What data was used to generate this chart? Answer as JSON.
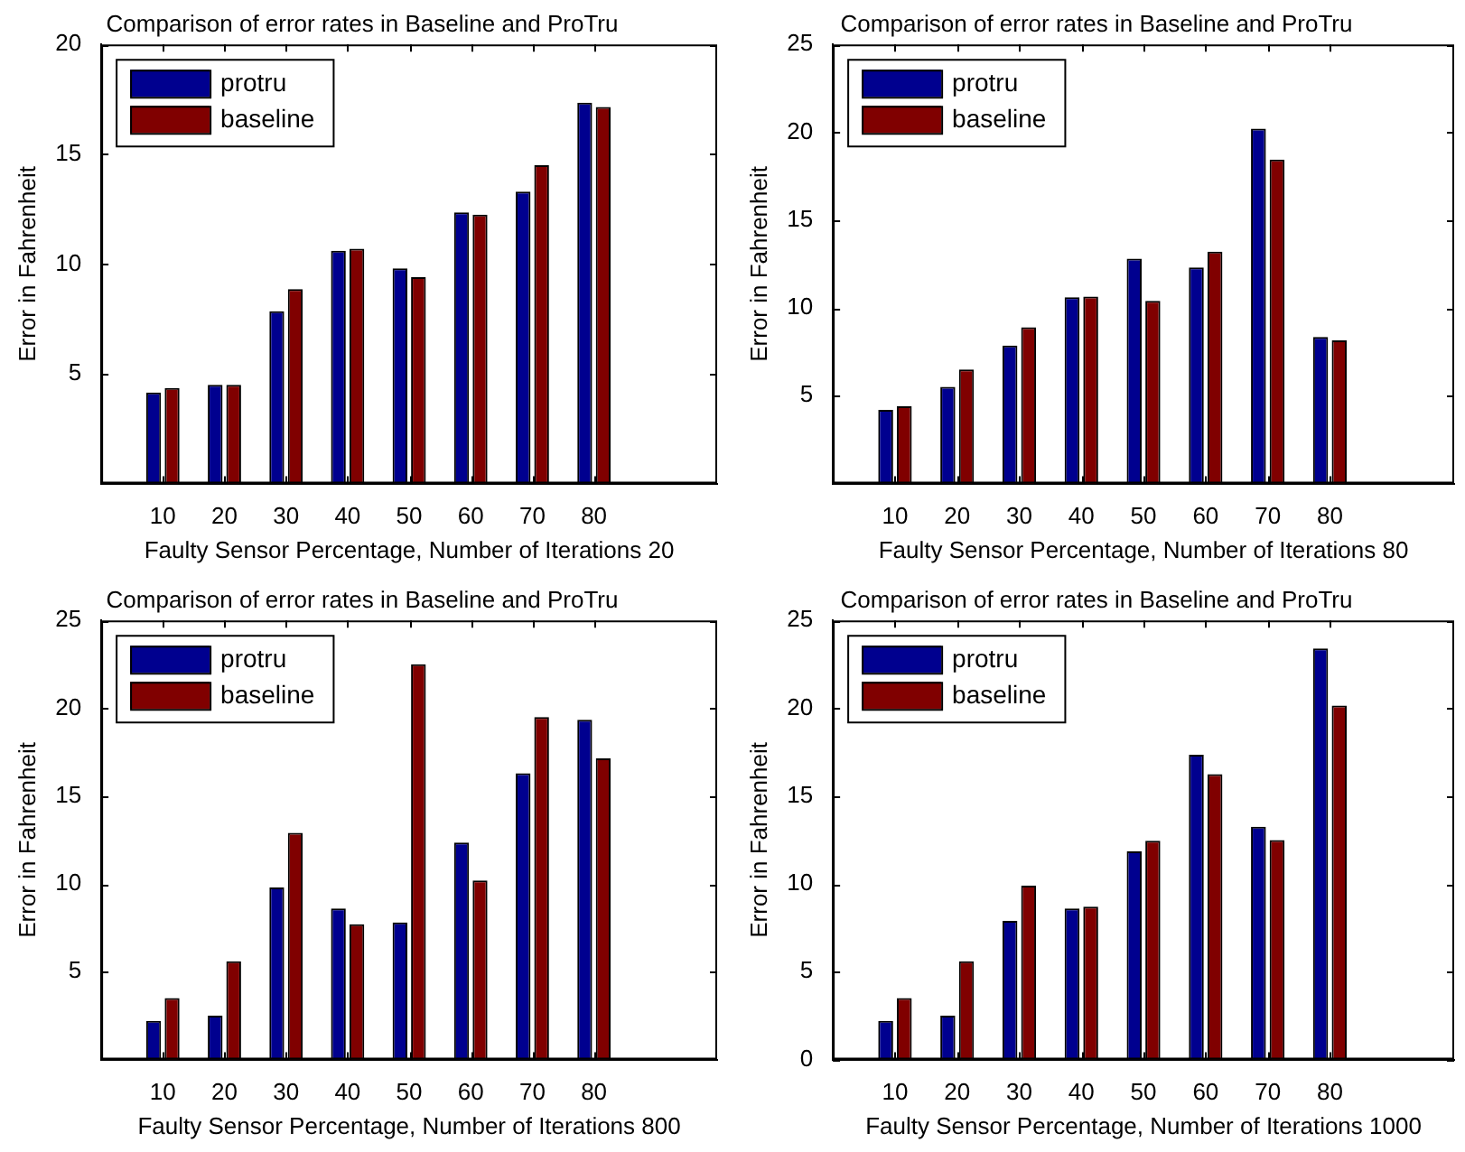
{
  "chart_data": [
    {
      "type": "bar",
      "title": "Comparison of error rates in Baseline and ProTru",
      "xlabel": "Faulty Sensor Percentage, Number of Iterations 20",
      "ylabel": "Error in Fahrenheit",
      "x": [
        10,
        20,
        30,
        40,
        50,
        60,
        70,
        80
      ],
      "xlim": [
        0,
        100
      ],
      "xticks": [
        10,
        20,
        30,
        40,
        50,
        60,
        70,
        80
      ],
      "ylim": [
        0,
        20
      ],
      "yticks": [
        5,
        10,
        15,
        20
      ],
      "legend": "top left",
      "grid": false,
      "series": [
        {
          "name": "protru",
          "color": "#00008f",
          "values": [
            4.15,
            4.5,
            7.85,
            10.6,
            9.8,
            12.35,
            13.3,
            17.35
          ]
        },
        {
          "name": "baseline",
          "color": "#800000",
          "values": [
            4.35,
            4.5,
            8.85,
            10.7,
            9.4,
            12.25,
            14.5,
            17.15
          ]
        }
      ]
    },
    {
      "type": "bar",
      "title": "Comparison of error rates in Baseline and ProTru",
      "xlabel": "Faulty Sensor Percentage, Number of Iterations 80",
      "ylabel": "Error in Fahrenheit",
      "x": [
        10,
        20,
        30,
        40,
        50,
        60,
        70,
        80
      ],
      "xlim": [
        0,
        100
      ],
      "xticks": [
        10,
        20,
        30,
        40,
        50,
        60,
        70,
        80
      ],
      "ylim": [
        0,
        25
      ],
      "yticks": [
        5,
        10,
        15,
        20,
        25
      ],
      "legend": "top left",
      "grid": false,
      "series": [
        {
          "name": "protru",
          "color": "#00008f",
          "values": [
            4.2,
            5.5,
            7.85,
            10.6,
            12.8,
            12.3,
            20.2,
            8.35
          ]
        },
        {
          "name": "baseline",
          "color": "#800000",
          "values": [
            4.4,
            6.5,
            8.9,
            10.65,
            10.4,
            13.2,
            18.45,
            8.15
          ]
        }
      ]
    },
    {
      "type": "bar",
      "title": "Comparison of error rates in Baseline and ProTru",
      "xlabel": "Faulty Sensor Percentage, Number of Iterations 800",
      "ylabel": "Error in Fahrenheit",
      "x": [
        10,
        20,
        30,
        40,
        50,
        60,
        70,
        80
      ],
      "xlim": [
        0,
        100
      ],
      "xticks": [
        10,
        20,
        30,
        40,
        50,
        60,
        70,
        80
      ],
      "ylim": [
        0,
        25
      ],
      "yticks": [
        5,
        10,
        15,
        20,
        25
      ],
      "legend": "top left",
      "grid": false,
      "series": [
        {
          "name": "protru",
          "color": "#00008f",
          "values": [
            2.2,
            2.5,
            9.8,
            8.6,
            7.8,
            12.35,
            16.3,
            19.35
          ]
        },
        {
          "name": "baseline",
          "color": "#800000",
          "values": [
            3.5,
            5.6,
            12.9,
            7.7,
            22.5,
            10.2,
            19.5,
            17.15
          ]
        }
      ]
    },
    {
      "type": "bar",
      "title": "Comparison of error rates in Baseline and ProTru",
      "xlabel": "Faulty Sensor Percentage, Number of Iterations 1000",
      "ylabel": "Error in Fahrenheit",
      "x": [
        10,
        20,
        30,
        40,
        50,
        60,
        70,
        80
      ],
      "xlim": [
        0,
        100
      ],
      "xticks": [
        10,
        20,
        30,
        40,
        50,
        60,
        70,
        80
      ],
      "ylim": [
        0,
        25
      ],
      "yticks": [
        0,
        5,
        10,
        15,
        20,
        25
      ],
      "legend": "top left",
      "grid": false,
      "series": [
        {
          "name": "protru",
          "color": "#00008f",
          "values": [
            2.2,
            2.5,
            7.9,
            8.6,
            11.85,
            17.35,
            13.25,
            23.4
          ]
        },
        {
          "name": "baseline",
          "color": "#800000",
          "values": [
            3.5,
            5.6,
            9.9,
            8.7,
            12.45,
            16.25,
            12.5,
            20.15
          ]
        }
      ]
    }
  ]
}
